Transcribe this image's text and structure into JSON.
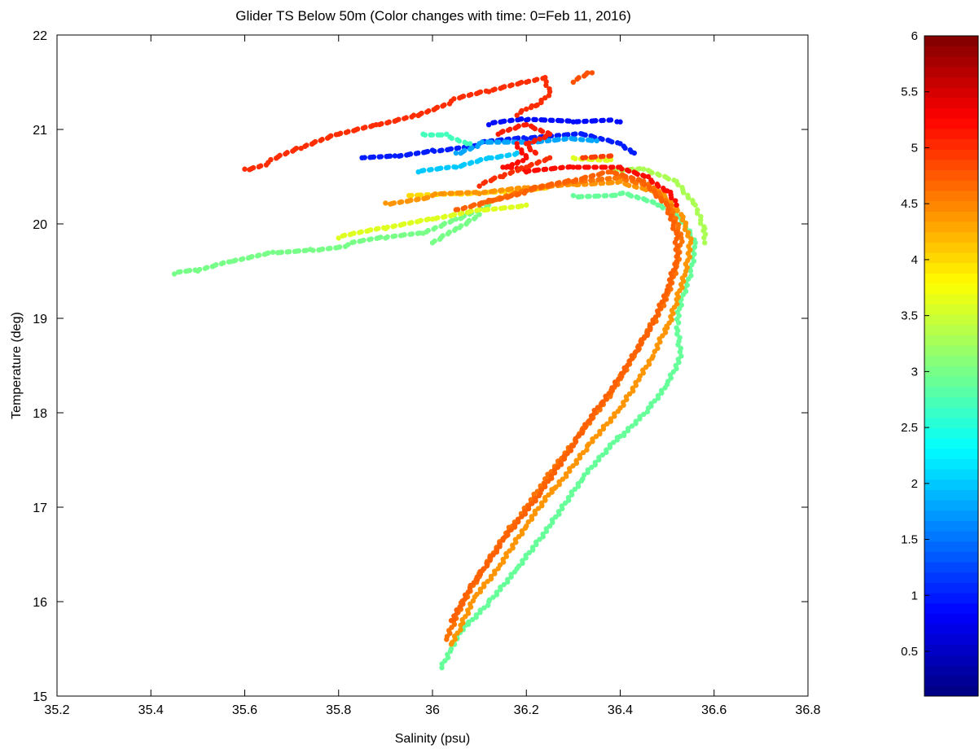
{
  "chart_data": {
    "type": "scatter",
    "title": "Glider TS  Below 50m (Color changes with time: 0=Feb 11, 2016)",
    "xlabel": "Salinity (psu)",
    "ylabel": "Temperature (deg)",
    "xlim": [
      35.2,
      36.8
    ],
    "ylim": [
      15,
      22
    ],
    "xticks": [
      35.2,
      35.4,
      35.6,
      35.8,
      36,
      36.2,
      36.4,
      36.6,
      36.8
    ],
    "xtick_labels": [
      "35.2",
      "35.4",
      "35.6",
      "35.8",
      "36",
      "36.2",
      "36.4",
      "36.6",
      "36.8"
    ],
    "yticks": [
      15,
      16,
      17,
      18,
      19,
      20,
      21,
      22
    ],
    "ytick_labels": [
      "15",
      "16",
      "17",
      "18",
      "19",
      "20",
      "21",
      "22"
    ],
    "grid": false,
    "colorbar": {
      "range": [
        0.1,
        6
      ],
      "ticks": [
        0.5,
        1,
        1.5,
        2,
        2.5,
        3,
        3.5,
        4,
        4.5,
        5,
        5.5,
        6
      ],
      "tick_labels": [
        "0.5",
        "1",
        "1.5",
        "2",
        "2.5",
        "3",
        "3.5",
        "4",
        "4.5",
        "5",
        "5.5",
        "6"
      ],
      "colormap": "jet"
    },
    "tracks": [
      {
        "t": 0.9,
        "points": [
          [
            36.12,
            21.05
          ],
          [
            36.2,
            21.1
          ],
          [
            36.3,
            21.08
          ],
          [
            36.38,
            21.1
          ],
          [
            36.4,
            21.08
          ]
        ]
      },
      {
        "t": 1.0,
        "points": [
          [
            35.85,
            20.7
          ],
          [
            35.92,
            20.72
          ],
          [
            36.0,
            20.78
          ],
          [
            36.1,
            20.85
          ],
          [
            36.2,
            20.9
          ],
          [
            36.32,
            20.95
          ],
          [
            36.4,
            20.85
          ],
          [
            36.43,
            20.75
          ]
        ]
      },
      {
        "t": 1.8,
        "points": [
          [
            36.05,
            20.75
          ],
          [
            36.1,
            20.85
          ],
          [
            36.2,
            20.85
          ],
          [
            36.3,
            20.9
          ],
          [
            36.35,
            20.88
          ]
        ]
      },
      {
        "t": 2.0,
        "points": [
          [
            35.97,
            20.55
          ],
          [
            36.05,
            20.6
          ],
          [
            36.12,
            20.7
          ],
          [
            36.18,
            20.75
          ]
        ]
      },
      {
        "t": 2.7,
        "points": [
          [
            35.98,
            20.95
          ],
          [
            36.03,
            20.95
          ],
          [
            36.08,
            20.85
          ]
        ]
      },
      {
        "t": 3.0,
        "points": [
          [
            35.45,
            19.47
          ],
          [
            35.5,
            19.5
          ],
          [
            35.57,
            19.6
          ],
          [
            35.66,
            19.7
          ],
          [
            35.74,
            19.73
          ],
          [
            35.82,
            19.78
          ],
          [
            35.9,
            19.85
          ],
          [
            35.98,
            19.9
          ],
          [
            36.05,
            20.05
          ],
          [
            36.12,
            20.2
          ]
        ]
      },
      {
        "t": 3.0,
        "points": [
          [
            36.0,
            19.8
          ],
          [
            36.05,
            19.95
          ],
          [
            36.1,
            20.1
          ]
        ]
      },
      {
        "t": 2.9,
        "points": [
          [
            36.3,
            20.3
          ],
          [
            36.4,
            20.32
          ],
          [
            36.48,
            20.2
          ],
          [
            36.53,
            20.05
          ],
          [
            36.56,
            19.8
          ],
          [
            36.55,
            19.5
          ],
          [
            36.53,
            19.2
          ],
          [
            36.52,
            18.9
          ],
          [
            36.53,
            18.6
          ],
          [
            36.5,
            18.3
          ],
          [
            36.46,
            18.05
          ],
          [
            36.4,
            17.75
          ],
          [
            36.32,
            17.3
          ],
          [
            36.25,
            16.8
          ],
          [
            36.18,
            16.35
          ],
          [
            36.12,
            16.0
          ],
          [
            36.07,
            15.75
          ],
          [
            36.04,
            15.5
          ],
          [
            36.02,
            15.3
          ]
        ]
      },
      {
        "t": 3.3,
        "points": [
          [
            36.38,
            20.55
          ],
          [
            36.45,
            20.58
          ],
          [
            36.52,
            20.45
          ],
          [
            36.56,
            20.2
          ],
          [
            36.58,
            19.95
          ],
          [
            36.58,
            19.8
          ]
        ]
      },
      {
        "t": 3.6,
        "points": [
          [
            36.3,
            20.7
          ],
          [
            36.38,
            20.68
          ]
        ]
      },
      {
        "t": 3.6,
        "points": [
          [
            35.8,
            19.85
          ],
          [
            35.9,
            19.95
          ],
          [
            36.0,
            20.05
          ],
          [
            36.1,
            20.15
          ],
          [
            36.2,
            20.2
          ]
        ]
      },
      {
        "t": 4.0,
        "points": [
          [
            35.95,
            20.3
          ],
          [
            36.05,
            20.32
          ],
          [
            36.15,
            20.35
          ],
          [
            36.25,
            20.4
          ]
        ]
      },
      {
        "t": 4.4,
        "points": [
          [
            35.9,
            20.22
          ],
          [
            36.0,
            20.3
          ],
          [
            36.1,
            20.32
          ],
          [
            36.2,
            20.38
          ],
          [
            36.3,
            20.42
          ],
          [
            36.4,
            20.45
          ],
          [
            36.48,
            20.35
          ],
          [
            36.53,
            20.1
          ],
          [
            36.55,
            19.8
          ],
          [
            36.54,
            19.5
          ],
          [
            36.52,
            19.2
          ],
          [
            36.5,
            18.9
          ],
          [
            36.47,
            18.6
          ],
          [
            36.44,
            18.35
          ],
          [
            36.4,
            18.05
          ],
          [
            36.33,
            17.65
          ],
          [
            36.26,
            17.2
          ],
          [
            36.2,
            16.8
          ],
          [
            36.14,
            16.35
          ],
          [
            36.09,
            16.05
          ],
          [
            36.06,
            15.75
          ],
          [
            36.04,
            15.55
          ]
        ]
      },
      {
        "t": 4.6,
        "points": [
          [
            36.1,
            20.2
          ],
          [
            36.2,
            20.35
          ],
          [
            36.3,
            20.45
          ],
          [
            36.4,
            20.5
          ],
          [
            36.46,
            20.42
          ],
          [
            36.51,
            20.15
          ],
          [
            36.53,
            19.85
          ],
          [
            36.52,
            19.55
          ],
          [
            36.5,
            19.25
          ],
          [
            36.47,
            18.95
          ],
          [
            36.43,
            18.6
          ],
          [
            36.38,
            18.2
          ],
          [
            36.31,
            17.75
          ],
          [
            36.24,
            17.3
          ],
          [
            36.17,
            16.8
          ],
          [
            36.11,
            16.35
          ],
          [
            36.06,
            15.95
          ],
          [
            36.03,
            15.6
          ]
        ]
      },
      {
        "t": 4.7,
        "points": [
          [
            36.05,
            20.15
          ],
          [
            36.12,
            20.25
          ],
          [
            36.2,
            20.35
          ],
          [
            36.3,
            20.45
          ],
          [
            36.38,
            20.55
          ],
          [
            36.45,
            20.45
          ],
          [
            36.5,
            20.2
          ],
          [
            36.52,
            19.9
          ],
          [
            36.52,
            19.6
          ],
          [
            36.5,
            19.3
          ],
          [
            36.47,
            18.95
          ],
          [
            36.42,
            18.55
          ],
          [
            36.36,
            18.1
          ],
          [
            36.3,
            17.65
          ],
          [
            36.23,
            17.15
          ],
          [
            36.15,
            16.65
          ],
          [
            36.08,
            16.15
          ],
          [
            36.04,
            15.8
          ]
        ]
      },
      {
        "t": 4.8,
        "points": [
          [
            36.3,
            21.5
          ],
          [
            36.34,
            21.6
          ]
        ]
      },
      {
        "t": 4.9,
        "points": [
          [
            36.32,
            20.7
          ],
          [
            36.38,
            20.72
          ]
        ]
      },
      {
        "t": 5.0,
        "points": [
          [
            35.6,
            20.58
          ],
          [
            35.65,
            20.65
          ],
          [
            35.72,
            20.8
          ],
          [
            35.8,
            20.95
          ],
          [
            35.88,
            21.05
          ],
          [
            35.96,
            21.15
          ],
          [
            36.04,
            21.3
          ],
          [
            36.12,
            21.4
          ],
          [
            36.2,
            21.5
          ],
          [
            36.24,
            21.55
          ],
          [
            36.25,
            21.4
          ],
          [
            36.22,
            21.25
          ],
          [
            36.18,
            21.15
          ]
        ]
      },
      {
        "t": 5.1,
        "points": [
          [
            36.14,
            20.95
          ],
          [
            36.2,
            21.05
          ],
          [
            36.25,
            20.95
          ],
          [
            36.2,
            20.85
          ],
          [
            36.22,
            20.75
          ]
        ]
      },
      {
        "t": 5.2,
        "points": [
          [
            36.18,
            20.85
          ],
          [
            36.2,
            20.7
          ],
          [
            36.15,
            20.6
          ],
          [
            36.2,
            20.55
          ],
          [
            36.3,
            20.6
          ],
          [
            36.4,
            20.6
          ],
          [
            36.46,
            20.5
          ],
          [
            36.5,
            20.35
          ],
          [
            36.52,
            20.2
          ]
        ]
      },
      {
        "t": 5.0,
        "points": [
          [
            36.1,
            20.4
          ],
          [
            36.15,
            20.5
          ],
          [
            36.2,
            20.6
          ],
          [
            36.25,
            20.7
          ]
        ]
      }
    ]
  }
}
